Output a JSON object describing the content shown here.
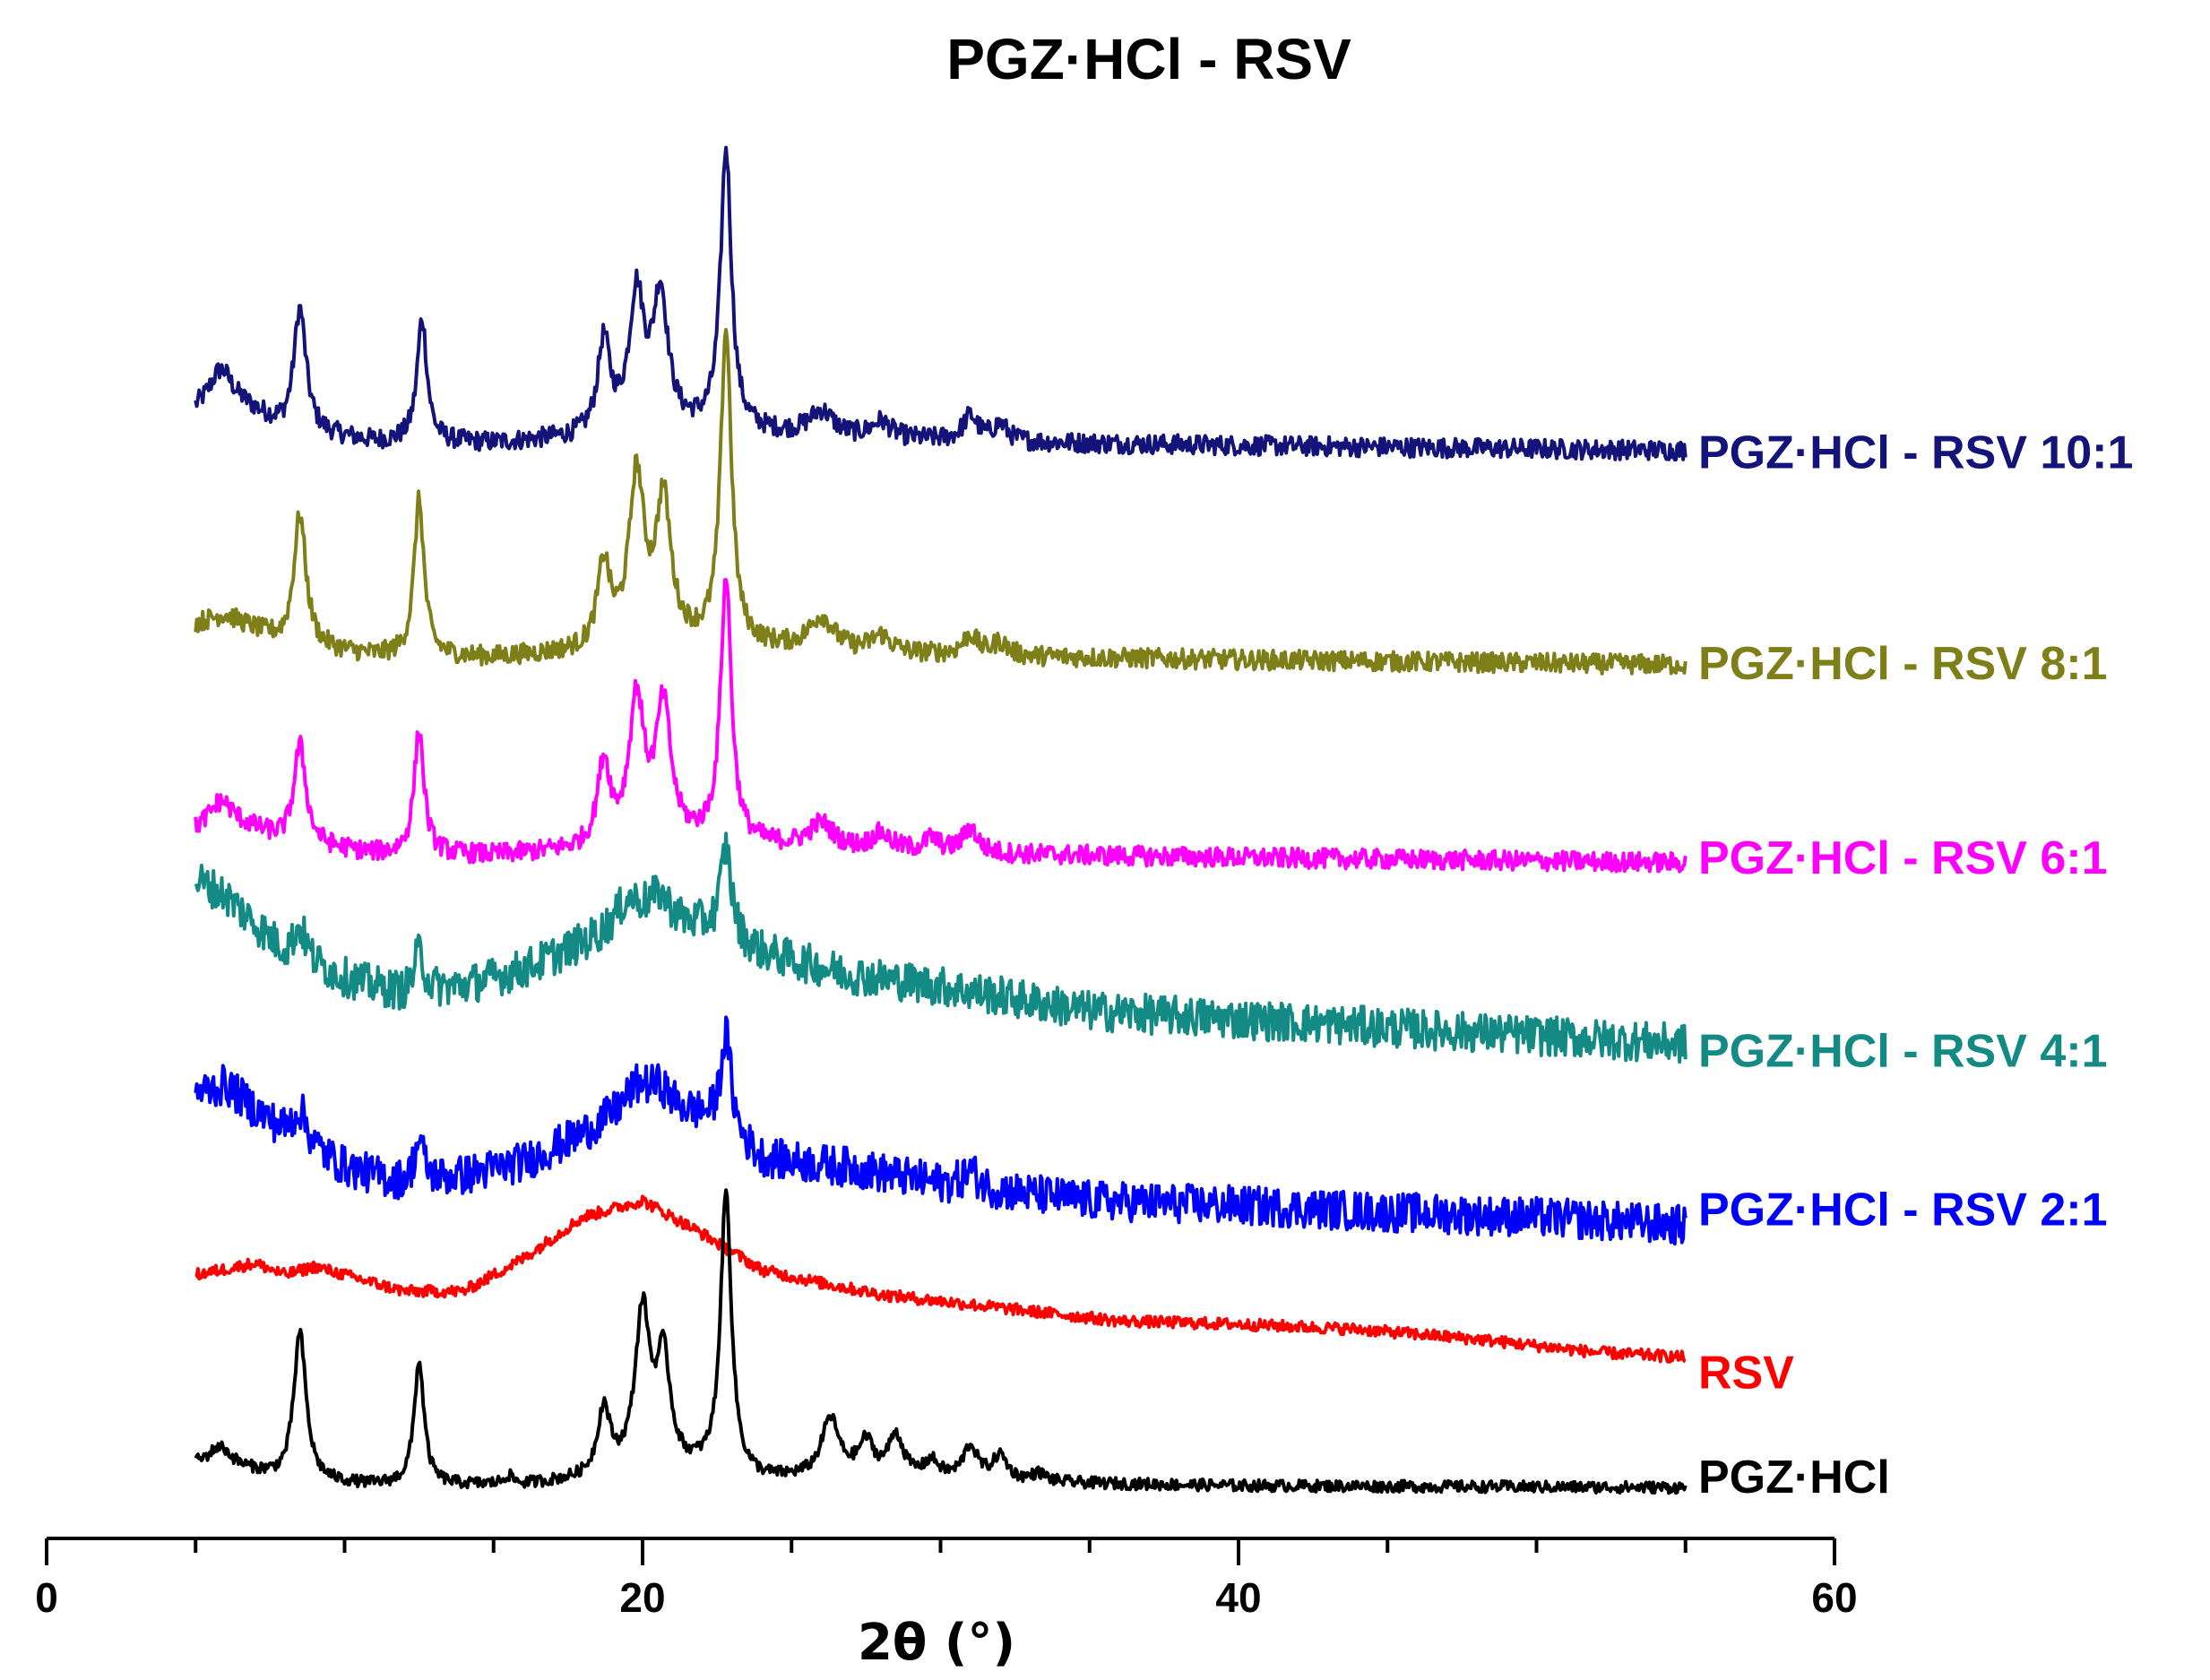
{
  "chart_data": {
    "type": "line",
    "title": "PGZ·HCl  -  RSV",
    "xlabel": "2θ (°)",
    "ylabel": "",
    "xlim": [
      0,
      60
    ],
    "x_ticks": [
      0,
      20,
      40,
      60
    ],
    "x_range_measured": [
      5,
      55
    ],
    "y_axis_visible": false,
    "legend": "direct labels at right end of each trace",
    "series": [
      {
        "name": "PGZ·HCl - RSV 10:1",
        "label": "PGZ·HCl - RSV 10:1",
        "color": "#13137a",
        "baseline": 6.3,
        "background": [
          [
            5,
            0.25
          ],
          [
            6,
            0.35
          ],
          [
            8,
            0.12
          ],
          [
            11,
            0.05
          ],
          [
            15,
            0.04
          ],
          [
            18,
            0.07
          ],
          [
            20,
            0.12
          ],
          [
            22,
            0.12
          ],
          [
            24,
            0.1
          ],
          [
            27,
            0.07
          ],
          [
            32,
            0.05
          ],
          [
            40,
            0.03
          ],
          [
            55,
            0
          ]
        ],
        "peaks": [
          [
            5.8,
            0.15,
            0.4
          ],
          [
            8.5,
            0.75,
            0.25
          ],
          [
            12.6,
            0.75,
            0.2
          ],
          [
            18.7,
            0.55,
            0.25
          ],
          [
            19.8,
            0.8,
            0.3
          ],
          [
            20.6,
            0.8,
            0.3
          ],
          [
            22.8,
            1.7,
            0.22
          ],
          [
            26,
            0.15,
            0.5
          ],
          [
            28,
            0.1,
            0.4
          ],
          [
            31,
            0.15,
            0.3
          ],
          [
            32,
            0.1,
            0.3
          ]
        ],
        "noise": 0.06
      },
      {
        "name": "PGZ·HCl - RSV 8:1",
        "label": "PGZ·HCl - RSV 8:1",
        "color": "#7f7f1a",
        "baseline": 5.0,
        "background": [
          [
            5,
            0.25
          ],
          [
            6,
            0.3
          ],
          [
            8,
            0.12
          ],
          [
            11,
            0.05
          ],
          [
            15,
            0.04
          ],
          [
            18,
            0.07
          ],
          [
            20,
            0.12
          ],
          [
            22,
            0.12
          ],
          [
            24,
            0.1
          ],
          [
            27,
            0.07
          ],
          [
            32,
            0.05
          ],
          [
            40,
            0.03
          ],
          [
            55,
            0
          ]
        ],
        "peaks": [
          [
            8.5,
            0.8,
            0.25
          ],
          [
            12.5,
            0.95,
            0.2
          ],
          [
            18.7,
            0.5,
            0.25
          ],
          [
            19.8,
            1.0,
            0.3
          ],
          [
            20.7,
            0.85,
            0.3
          ],
          [
            22.8,
            1.9,
            0.22
          ],
          [
            26,
            0.2,
            0.5
          ],
          [
            28,
            0.1,
            0.4
          ],
          [
            31,
            0.12,
            0.3
          ],
          [
            32,
            0.08,
            0.3
          ]
        ],
        "noise": 0.06
      },
      {
        "name": "PGZ·HCl - RSV 6:1",
        "label": "PGZ·HCl - RSV 6:1",
        "color": "#ff00ff",
        "baseline": 3.8,
        "background": [
          [
            5,
            0.2
          ],
          [
            6,
            0.28
          ],
          [
            8,
            0.12
          ],
          [
            11,
            0.05
          ],
          [
            15,
            0.04
          ],
          [
            18,
            0.07
          ],
          [
            20,
            0.12
          ],
          [
            22,
            0.12
          ],
          [
            24,
            0.1
          ],
          [
            27,
            0.07
          ],
          [
            32,
            0.05
          ],
          [
            40,
            0.03
          ],
          [
            55,
            0
          ]
        ],
        "peaks": [
          [
            5.8,
            0.1,
            0.4
          ],
          [
            8.5,
            0.6,
            0.25
          ],
          [
            12.5,
            0.75,
            0.2
          ],
          [
            18.7,
            0.5,
            0.25
          ],
          [
            19.8,
            0.85,
            0.3
          ],
          [
            20.7,
            0.8,
            0.3
          ],
          [
            22.8,
            1.6,
            0.22
          ],
          [
            26,
            0.15,
            0.5
          ],
          [
            28,
            0.1,
            0.4
          ],
          [
            29.7,
            0.08,
            0.3
          ],
          [
            31,
            0.15,
            0.3
          ]
        ],
        "noise": 0.06
      },
      {
        "name": "PGZ·HCl - RSV 4:1",
        "label": "PGZ·HCl - RSV  4:1",
        "color": "#138a84",
        "baseline": 2.7,
        "background": [
          [
            5,
            1.0
          ],
          [
            6,
            0.9
          ],
          [
            8,
            0.55
          ],
          [
            10,
            0.4
          ],
          [
            12,
            0.3
          ],
          [
            14,
            0.35
          ],
          [
            16,
            0.45
          ],
          [
            18,
            0.6
          ],
          [
            20,
            0.75
          ],
          [
            22,
            0.7
          ],
          [
            24,
            0.55
          ],
          [
            27,
            0.42
          ],
          [
            30,
            0.35
          ],
          [
            35,
            0.2
          ],
          [
            40,
            0.15
          ],
          [
            45,
            0.1
          ],
          [
            50,
            0.05
          ],
          [
            55,
            0
          ]
        ],
        "peaks": [
          [
            8.5,
            0.2,
            0.25
          ],
          [
            12.5,
            0.25,
            0.2
          ],
          [
            19.5,
            0.15,
            0.5
          ],
          [
            20.6,
            0.15,
            0.4
          ],
          [
            22.8,
            0.55,
            0.22
          ]
        ],
        "noise": 0.12
      },
      {
        "name": "PGZ·HCl - RSV 2:1",
        "label": "PGZ·HCl - RSV  2:1",
        "color": "#0000ff",
        "baseline": 1.6,
        "background": [
          [
            5,
            0.8
          ],
          [
            6,
            0.85
          ],
          [
            8,
            0.55
          ],
          [
            10,
            0.35
          ],
          [
            12,
            0.25
          ],
          [
            14,
            0.3
          ],
          [
            16,
            0.38
          ],
          [
            18,
            0.55
          ],
          [
            20,
            0.75
          ],
          [
            22,
            0.65
          ],
          [
            24,
            0.4
          ],
          [
            27,
            0.35
          ],
          [
            30,
            0.25
          ],
          [
            35,
            0.15
          ],
          [
            40,
            0.12
          ],
          [
            45,
            0.08
          ],
          [
            50,
            0.05
          ],
          [
            55,
            0
          ]
        ],
        "peaks": [
          [
            8.5,
            0.2,
            0.3
          ],
          [
            12.5,
            0.25,
            0.2
          ],
          [
            19.8,
            0.1,
            0.5
          ],
          [
            20.6,
            0.1,
            0.4
          ],
          [
            22.8,
            0.6,
            0.22
          ],
          [
            31,
            0.1,
            0.3
          ]
        ],
        "noise": 0.12
      },
      {
        "name": "RSV",
        "label": "RSV",
        "color": "#ff0000",
        "baseline": 0.75,
        "background": [
          [
            5,
            0.55
          ],
          [
            7,
            0.62
          ],
          [
            8,
            0.55
          ],
          [
            9,
            0.6
          ],
          [
            10,
            0.55
          ],
          [
            12,
            0.45
          ],
          [
            14,
            0.45
          ],
          [
            16,
            0.65
          ],
          [
            18,
            0.9
          ],
          [
            20,
            1.0
          ],
          [
            22,
            0.8
          ],
          [
            24,
            0.58
          ],
          [
            26,
            0.5
          ],
          [
            28,
            0.43
          ],
          [
            32,
            0.35
          ],
          [
            36,
            0.27
          ],
          [
            40,
            0.25
          ],
          [
            44,
            0.22
          ],
          [
            48,
            0.16
          ],
          [
            52,
            0.08
          ],
          [
            55,
            0.05
          ]
        ],
        "peaks": [],
        "noise": 0.035
      },
      {
        "name": "PGZ·HCl",
        "label": "PGZ·HCl",
        "color": "#000000",
        "baseline": 0.0,
        "background": [
          [
            5,
            0.15
          ],
          [
            6,
            0.15
          ],
          [
            8,
            0.05
          ],
          [
            11,
            0.02
          ],
          [
            16,
            0.02
          ],
          [
            18,
            0.05
          ],
          [
            20,
            0.1
          ],
          [
            22,
            0.1
          ],
          [
            24,
            0.05
          ],
          [
            27,
            0.07
          ],
          [
            32,
            0.04
          ],
          [
            40,
            0.02
          ],
          [
            55,
            0.01
          ]
        ],
        "peaks": [
          [
            5.8,
            0.1,
            0.4
          ],
          [
            8.5,
            0.9,
            0.25
          ],
          [
            12.5,
            0.75,
            0.2
          ],
          [
            15.5,
            0.05,
            0.2
          ],
          [
            18.7,
            0.4,
            0.25
          ],
          [
            20,
            0.95,
            0.3
          ],
          [
            20.7,
            0.65,
            0.28
          ],
          [
            22.8,
            1.7,
            0.22
          ],
          [
            26.3,
            0.35,
            0.35
          ],
          [
            27.5,
            0.2,
            0.3
          ],
          [
            28.5,
            0.25,
            0.3
          ],
          [
            29.7,
            0.1,
            0.3
          ],
          [
            31,
            0.2,
            0.3
          ],
          [
            32,
            0.15,
            0.3
          ],
          [
            33.3,
            0.05,
            0.3
          ]
        ],
        "noise": 0.035
      }
    ]
  }
}
